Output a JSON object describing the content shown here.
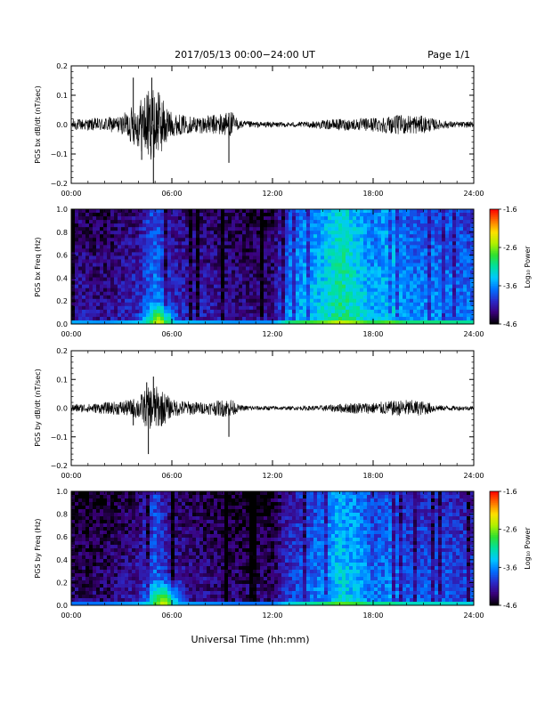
{
  "header": {
    "title": "2017/05/13  00:00−24:00 UT",
    "page": "Page 1/1"
  },
  "footer": {
    "xlabel": "Universal Time (hh:mm)"
  },
  "colors": {
    "trace": "#000000",
    "colormap": [
      "#000000",
      "#3a007a",
      "#2a2ac8",
      "#0070ff",
      "#00c8ff",
      "#00e0a0",
      "#30e030",
      "#b0f000",
      "#ffe000",
      "#ff7000",
      "#ff0000"
    ]
  },
  "chart_data": [
    {
      "type": "line",
      "name": "PGS bx dB/dt",
      "ylabel": "PGS bx dB/dt (nT/sec)",
      "ylim": [
        -0.2,
        0.2
      ],
      "yticks": [
        "0.2",
        "0.1",
        "0.0",
        "−0.1",
        "−0.2"
      ],
      "xticks": [
        "00:00",
        "06:00",
        "12:00",
        "18:00",
        "24:00"
      ],
      "xlim_hours": [
        0,
        24
      ],
      "grid": false,
      "envelope": {
        "hours": [
          0,
          1,
          2,
          3,
          3.5,
          4,
          4.5,
          5,
          5.5,
          6,
          7,
          8,
          9,
          9.5,
          10,
          11,
          12,
          13,
          14,
          15,
          16,
          17,
          18,
          19,
          20,
          21,
          22,
          23,
          24
        ],
        "amplitude": [
          0.02,
          0.02,
          0.025,
          0.03,
          0.06,
          0.08,
          0.12,
          0.12,
          0.09,
          0.04,
          0.03,
          0.03,
          0.04,
          0.05,
          0.015,
          0.01,
          0.01,
          0.008,
          0.01,
          0.015,
          0.02,
          0.02,
          0.025,
          0.03,
          0.035,
          0.03,
          0.015,
          0.01,
          0.01
        ]
      },
      "spikes": [
        {
          "hour": 3.7,
          "value": 0.16
        },
        {
          "hour": 4.8,
          "value": 0.16
        },
        {
          "hour": 4.9,
          "value": -0.2
        },
        {
          "hour": 4.2,
          "value": -0.12
        },
        {
          "hour": 9.4,
          "value": -0.13
        },
        {
          "hour": 9.4,
          "value": 0.04
        },
        {
          "hour": 5.2,
          "value": 0.11
        }
      ]
    },
    {
      "type": "heatmap",
      "name": "PGS bx Freq",
      "ylabel": "PGS bx Freq (Hz)",
      "ylim": [
        0.0,
        1.0
      ],
      "yticks": [
        "1.0",
        "0.8",
        "0.6",
        "0.4",
        "0.2",
        "0.0"
      ],
      "xticks": [
        "00:00",
        "06:00",
        "12:00",
        "18:00",
        "24:00"
      ],
      "xlim_hours": [
        0,
        24
      ],
      "colorbar": {
        "label": "Log₁₀ Power",
        "range": [
          -4.6,
          -1.6
        ],
        "ticks": [
          "-1.6",
          "-2.6",
          "-3.6",
          "-4.6"
        ]
      },
      "activity_hours": [
        0,
        2,
        4,
        5,
        6,
        8,
        10,
        12,
        13,
        15,
        16,
        17,
        18,
        19,
        20,
        22,
        24
      ],
      "activity_log_power": [
        -4.1,
        -4.2,
        -4.0,
        -3.6,
        -4.0,
        -4.1,
        -4.2,
        -4.2,
        -3.6,
        -3.3,
        -3.0,
        -3.2,
        -3.5,
        -3.3,
        -3.6,
        -3.6,
        -3.7
      ],
      "low_frequency_enhancement": [
        {
          "hours": [
            4.0,
            6.5
          ],
          "log_power_peak": -2.2,
          "freq_max_hz": 0.2
        }
      ]
    },
    {
      "type": "line",
      "name": "PGS by dB/dt",
      "ylabel": "PGS by dB/dt (nT/sec)",
      "ylim": [
        -0.2,
        0.2
      ],
      "yticks": [
        "0.2",
        "0.1",
        "0.0",
        "−0.1",
        "−0.2"
      ],
      "xticks": [
        "00:00",
        "06:00",
        "12:00",
        "18:00",
        "24:00"
      ],
      "xlim_hours": [
        0,
        24
      ],
      "grid": false,
      "envelope": {
        "hours": [
          0,
          1,
          2,
          3,
          3.5,
          4,
          4.5,
          5,
          5.5,
          6,
          7,
          8,
          9,
          9.5,
          10,
          11,
          12,
          13,
          14,
          15,
          16,
          17,
          18,
          19,
          20,
          21,
          22,
          23,
          24
        ],
        "amplitude": [
          0.015,
          0.015,
          0.02,
          0.025,
          0.03,
          0.04,
          0.07,
          0.08,
          0.06,
          0.03,
          0.025,
          0.02,
          0.03,
          0.035,
          0.01,
          0.008,
          0.008,
          0.006,
          0.008,
          0.01,
          0.015,
          0.02,
          0.02,
          0.025,
          0.03,
          0.025,
          0.01,
          0.008,
          0.008
        ]
      },
      "spikes": [
        {
          "hour": 4.5,
          "value": 0.09
        },
        {
          "hour": 4.9,
          "value": 0.11
        },
        {
          "hour": 4.6,
          "value": -0.16
        },
        {
          "hour": 9.4,
          "value": -0.1
        },
        {
          "hour": 3.7,
          "value": -0.06
        }
      ]
    },
    {
      "type": "heatmap",
      "name": "PGS by Freq",
      "ylabel": "PGS by Freq (Hz)",
      "ylim": [
        0.0,
        1.0
      ],
      "yticks": [
        "1.0",
        "0.8",
        "0.6",
        "0.4",
        "0.2",
        "0.0"
      ],
      "xticks": [
        "00:00",
        "06:00",
        "12:00",
        "18:00",
        "24:00"
      ],
      "xlim_hours": [
        0,
        24
      ],
      "colorbar": {
        "label": "Log₁₀ Power",
        "range": [
          -4.6,
          -1.6
        ],
        "ticks": [
          "-1.6",
          "-2.6",
          "-3.6",
          "-4.6"
        ]
      },
      "activity_hours": [
        0,
        2,
        4,
        5,
        6,
        8,
        10,
        12,
        13,
        15,
        16,
        17,
        18,
        19,
        20,
        22,
        24
      ],
      "activity_log_power": [
        -4.3,
        -4.3,
        -4.1,
        -3.7,
        -4.1,
        -4.2,
        -4.3,
        -4.3,
        -3.9,
        -3.6,
        -3.3,
        -3.4,
        -3.7,
        -3.6,
        -3.8,
        -3.8,
        -3.9
      ],
      "low_frequency_enhancement": [
        {
          "hours": [
            4.2,
            6.8
          ],
          "log_power_peak": -2.2,
          "freq_max_hz": 0.25
        }
      ]
    }
  ]
}
